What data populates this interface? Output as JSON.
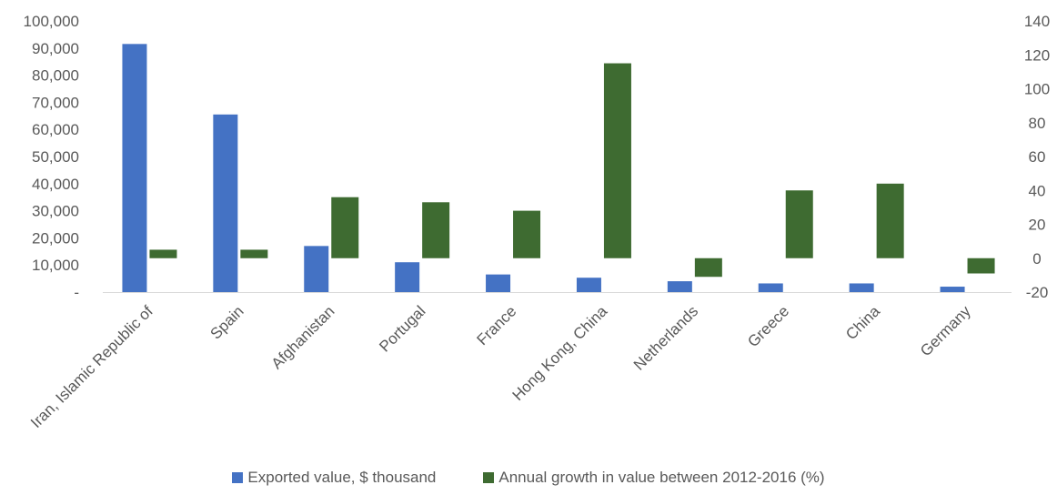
{
  "chart_data": {
    "type": "bar",
    "categories": [
      "Iran, Islamic Republic of",
      "Spain",
      "Afghanistan",
      "Portugal",
      "France",
      "Hong Kong, China",
      "Netherlands",
      "Greece",
      "China",
      "Germany"
    ],
    "series": [
      {
        "name": "Exported value, $ thousand",
        "axis": "left",
        "color": "#4472C4",
        "values": [
          91500,
          65500,
          17000,
          11000,
          6500,
          5300,
          4000,
          3200,
          3200,
          2000
        ]
      },
      {
        "name": "Annual growth in value between 2012-2016 (%)",
        "axis": "right",
        "color": "#3E6B31",
        "values": [
          5,
          5,
          36,
          33,
          28,
          115,
          -11,
          40,
          44,
          -9
        ]
      }
    ],
    "y_left": {
      "min": 0,
      "max": 100000,
      "ticks": [
        0,
        10000,
        20000,
        30000,
        40000,
        50000,
        60000,
        70000,
        80000,
        90000,
        100000
      ],
      "tick_labels": [
        "-",
        "10,000",
        "20,000",
        "30,000",
        "40,000",
        "50,000",
        "60,000",
        "70,000",
        "80,000",
        "90,000",
        "100,000"
      ]
    },
    "y_right": {
      "min": -20,
      "max": 140,
      "ticks": [
        -20,
        0,
        20,
        40,
        60,
        80,
        100,
        120,
        140
      ],
      "tick_labels": [
        "-20",
        "0",
        "20",
        "40",
        "60",
        "80",
        "100",
        "120",
        "140"
      ]
    },
    "grid": false,
    "legend_position": "bottom"
  }
}
